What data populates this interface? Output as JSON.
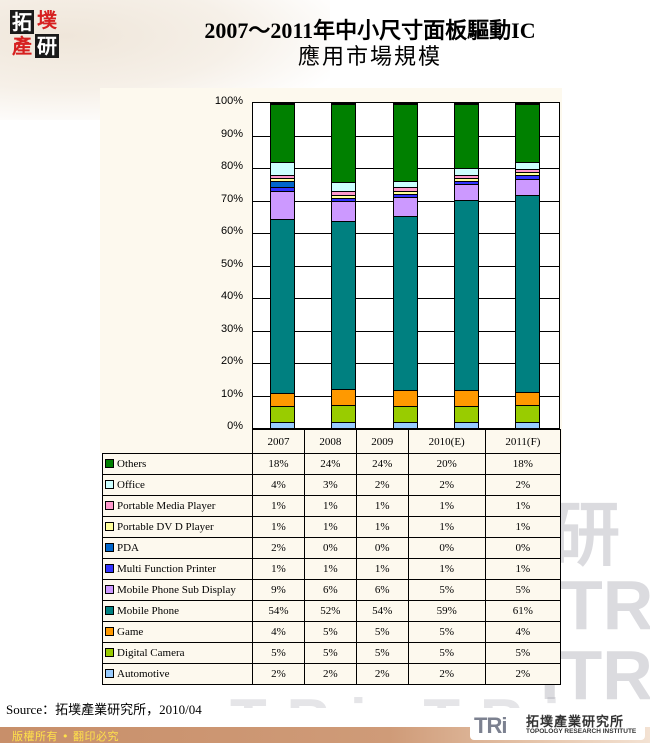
{
  "logo": {
    "chars": [
      "拓",
      "墣",
      "產",
      "研"
    ]
  },
  "title": {
    "line1": "2007～2011年中小尺寸面板驅動IC",
    "line2": "應用市場規模"
  },
  "source": "Source：拓墣產業研究所，2010/04",
  "footer": {
    "copyright": "版權所有 • 翻印必究",
    "org_logo_mark": "TRi",
    "org_name_cn": "拓墣產業研究所",
    "org_name_en": "TOPOLOGY RESEARCH INSTITUTE"
  },
  "chart_data": {
    "type": "bar",
    "stacked": true,
    "percent_stacked": true,
    "title": "2007～2011年中小尺寸面板驅動IC 應用市場規模",
    "xlabel": "",
    "ylabel": "",
    "ylim": [
      0,
      100
    ],
    "yticks": [
      "0%",
      "10%",
      "20%",
      "30%",
      "40%",
      "50%",
      "60%",
      "70%",
      "80%",
      "90%",
      "100%"
    ],
    "grid": true,
    "legend_position": "data-table",
    "categories": [
      "2007",
      "2008",
      "2009",
      "2010(E)",
      "2011(F)"
    ],
    "series": [
      {
        "name": "Automotive",
        "color": "#99CCFF",
        "values": [
          2,
          2,
          2,
          2,
          2
        ],
        "labels": [
          "2%",
          "2%",
          "2%",
          "2%",
          "2%"
        ]
      },
      {
        "name": "Digital Camera",
        "color": "#99CC00",
        "values": [
          5,
          5,
          5,
          5,
          5
        ],
        "labels": [
          "5%",
          "5%",
          "5%",
          "5%",
          "5%"
        ]
      },
      {
        "name": "Game",
        "color": "#FF9900",
        "values": [
          4,
          5,
          5,
          5,
          4
        ],
        "labels": [
          "4%",
          "5%",
          "5%",
          "5%",
          "4%"
        ]
      },
      {
        "name": "Mobile Phone",
        "color": "#008080",
        "values": [
          54,
          52,
          54,
          59,
          61
        ],
        "labels": [
          "54%",
          "52%",
          "54%",
          "59%",
          "61%"
        ]
      },
      {
        "name": "Mobile Phone Sub Display",
        "color": "#CC99FF",
        "values": [
          9,
          6,
          6,
          5,
          5
        ],
        "labels": [
          "9%",
          "6%",
          "6%",
          "5%",
          "5%"
        ]
      },
      {
        "name": "Multi Function Printer",
        "color": "#3333FF",
        "values": [
          1,
          1,
          1,
          1,
          1
        ],
        "labels": [
          "1%",
          "1%",
          "1%",
          "1%",
          "1%"
        ]
      },
      {
        "name": "PDA",
        "color": "#0066CC",
        "values": [
          2,
          0,
          0,
          0,
          0
        ],
        "labels": [
          "2%",
          "0%",
          "0%",
          "0%",
          "0%"
        ]
      },
      {
        "name": "Portable DV D Player",
        "color": "#FFFF99",
        "values": [
          1,
          1,
          1,
          1,
          1
        ],
        "labels": [
          "1%",
          "1%",
          "1%",
          "1%",
          "1%"
        ]
      },
      {
        "name": "Portable Media Player",
        "color": "#FF99CC",
        "values": [
          1,
          1,
          1,
          1,
          1
        ],
        "labels": [
          "1%",
          "1%",
          "1%",
          "1%",
          "1%"
        ]
      },
      {
        "name": "Office",
        "color": "#CCFFFF",
        "values": [
          4,
          3,
          2,
          2,
          2
        ],
        "labels": [
          "4%",
          "3%",
          "2%",
          "2%",
          "2%"
        ]
      },
      {
        "name": "Others",
        "color": "#008000",
        "values": [
          18,
          24,
          24,
          20,
          18
        ],
        "labels": [
          "18%",
          "24%",
          "24%",
          "20%",
          "18%"
        ]
      }
    ]
  }
}
